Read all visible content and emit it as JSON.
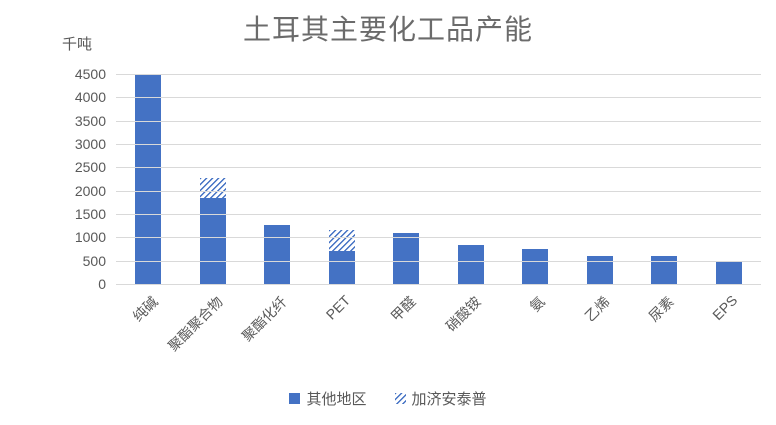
{
  "title": "土耳其主要化工品产能",
  "unit_label": "千吨",
  "legend": {
    "items": [
      {
        "label": "其他地区",
        "style": "solid"
      },
      {
        "label": "加济安泰普",
        "style": "hatch"
      }
    ]
  },
  "colors": {
    "bar": "#4472C4",
    "grid": "#D9D9D9",
    "text": "#595959",
    "title": "#6B6B6B"
  },
  "chart_data": {
    "type": "bar",
    "stacked": true,
    "title": "土耳其主要化工品产能",
    "ylabel": "千吨",
    "categories": [
      "纯碱",
      "聚酯聚合物",
      "聚酯化纤",
      "PET",
      "甲醛",
      "硝酸铵",
      "氨",
      "乙烯",
      "尿素",
      "EPS"
    ],
    "series": [
      {
        "name": "其他地区",
        "style": "solid",
        "values": [
          4500,
          1850,
          1275,
          700,
          1100,
          840,
          760,
          590,
          590,
          470
        ]
      },
      {
        "name": "加济安泰普",
        "style": "hatch",
        "values": [
          0,
          430,
          0,
          450,
          0,
          0,
          0,
          0,
          0,
          0
        ]
      }
    ],
    "ylim": [
      0,
      4500
    ],
    "ytick_step": 500,
    "grid": true,
    "xlabel_rotation": -45,
    "legend_position": "bottom"
  }
}
